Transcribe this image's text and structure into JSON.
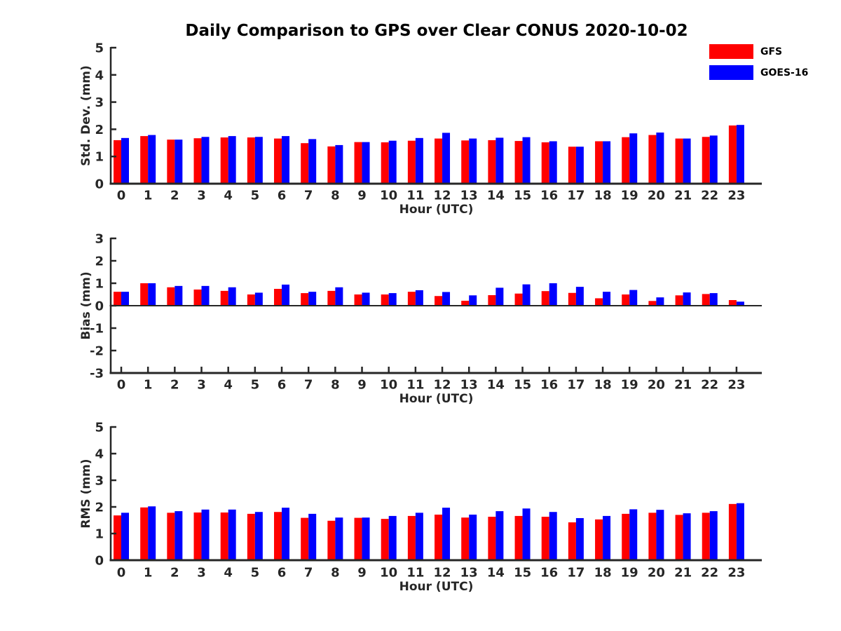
{
  "title": "Daily Comparison to GPS over Clear CONUS 2020-10-02",
  "legend": {
    "items": [
      {
        "label": "GFS",
        "color": "#ff0000"
      },
      {
        "label": "GOES-16",
        "color": "#0000ff"
      }
    ]
  },
  "axis_color": "#262626",
  "chart_data": [
    {
      "type": "bar",
      "ylabel": "Std. Dev. (mm)",
      "xlabel": "Hour (UTC)",
      "ylim": [
        0,
        5
      ],
      "yticks": [
        0,
        1,
        2,
        3,
        4,
        5
      ],
      "categories": [
        0,
        1,
        2,
        3,
        4,
        5,
        6,
        7,
        8,
        9,
        10,
        11,
        12,
        13,
        14,
        15,
        16,
        17,
        18,
        19,
        20,
        21,
        22,
        23
      ],
      "series": [
        {
          "name": "GFS",
          "color": "#ff0000",
          "values": [
            1.6,
            1.75,
            1.62,
            1.67,
            1.7,
            1.7,
            1.66,
            1.49,
            1.37,
            1.53,
            1.52,
            1.58,
            1.66,
            1.59,
            1.6,
            1.57,
            1.52,
            1.36,
            1.56,
            1.71,
            1.79,
            1.66,
            1.72,
            2.14
          ]
        },
        {
          "name": "GOES-16",
          "color": "#0000ff",
          "values": [
            1.68,
            1.79,
            1.62,
            1.72,
            1.75,
            1.72,
            1.75,
            1.64,
            1.42,
            1.53,
            1.58,
            1.68,
            1.87,
            1.66,
            1.69,
            1.71,
            1.56,
            1.36,
            1.56,
            1.85,
            1.88,
            1.66,
            1.77,
            2.16
          ]
        }
      ]
    },
    {
      "type": "bar",
      "ylabel": "Bias (mm)",
      "xlabel": "Hour (UTC)",
      "ylim": [
        -3,
        3
      ],
      "yticks": [
        -3,
        -2,
        -1,
        0,
        1,
        2,
        3
      ],
      "categories": [
        0,
        1,
        2,
        3,
        4,
        5,
        6,
        7,
        8,
        9,
        10,
        11,
        12,
        13,
        14,
        15,
        16,
        17,
        18,
        19,
        20,
        21,
        22,
        23
      ],
      "series": [
        {
          "name": "GFS",
          "color": "#ff0000",
          "values": [
            0.62,
            1.0,
            0.82,
            0.72,
            0.66,
            0.5,
            0.75,
            0.56,
            0.66,
            0.5,
            0.5,
            0.62,
            0.43,
            0.22,
            0.47,
            0.54,
            0.65,
            0.57,
            0.33,
            0.5,
            0.21,
            0.46,
            0.52,
            0.25
          ]
        },
        {
          "name": "GOES-16",
          "color": "#0000ff",
          "values": [
            0.62,
            1.0,
            0.88,
            0.88,
            0.82,
            0.58,
            0.94,
            0.62,
            0.82,
            0.58,
            0.56,
            0.69,
            0.61,
            0.46,
            0.8,
            0.95,
            1.0,
            0.84,
            0.62,
            0.7,
            0.37,
            0.59,
            0.56,
            0.18
          ]
        }
      ]
    },
    {
      "type": "bar",
      "ylabel": "RMS (mm)",
      "xlabel": "Hour (UTC)",
      "ylim": [
        0,
        5
      ],
      "yticks": [
        0,
        1,
        2,
        3,
        4,
        5
      ],
      "categories": [
        0,
        1,
        2,
        3,
        4,
        5,
        6,
        7,
        8,
        9,
        10,
        11,
        12,
        13,
        14,
        15,
        16,
        17,
        18,
        19,
        20,
        21,
        22,
        23
      ],
      "series": [
        {
          "name": "GFS",
          "color": "#ff0000",
          "values": [
            1.68,
            1.98,
            1.78,
            1.79,
            1.79,
            1.74,
            1.81,
            1.59,
            1.48,
            1.59,
            1.55,
            1.66,
            1.71,
            1.6,
            1.63,
            1.66,
            1.63,
            1.42,
            1.53,
            1.74,
            1.78,
            1.7,
            1.78,
            2.11
          ]
        },
        {
          "name": "GOES-16",
          "color": "#0000ff",
          "values": [
            1.78,
            2.02,
            1.84,
            1.9,
            1.9,
            1.81,
            1.97,
            1.74,
            1.6,
            1.6,
            1.66,
            1.78,
            1.97,
            1.71,
            1.84,
            1.94,
            1.81,
            1.58,
            1.66,
            1.91,
            1.89,
            1.76,
            1.84,
            2.14
          ]
        }
      ]
    }
  ]
}
